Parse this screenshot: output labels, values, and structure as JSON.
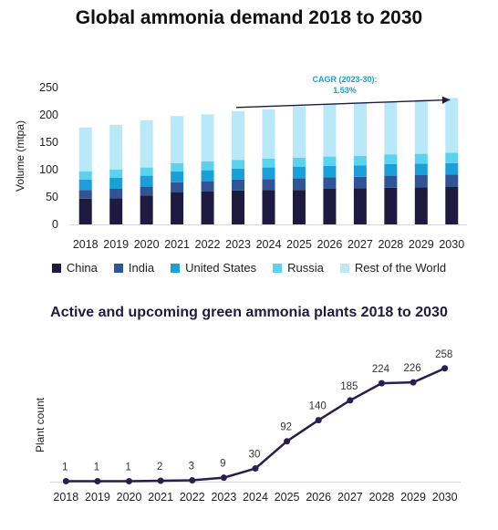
{
  "chart_data": [
    {
      "type": "bar",
      "stacked": true,
      "title": "Global ammonia demand  2018 to 2030",
      "ylabel": "Volume (mtpa)",
      "ylim": [
        0,
        250
      ],
      "yticks": [
        "0",
        "50",
        "100",
        "150",
        "200",
        "250"
      ],
      "categories": [
        "2018",
        "2019",
        "2020",
        "2021",
        "2022",
        "2023",
        "2024",
        "2025",
        "2026",
        "2027",
        "2028",
        "2029",
        "2030"
      ],
      "series": [
        {
          "name": "China",
          "color": "#1f1a3f",
          "values": [
            47,
            48,
            53,
            59,
            60,
            62,
            63,
            63,
            65,
            66,
            67,
            68,
            69
          ]
        },
        {
          "name": "India",
          "color": "#2f5597",
          "values": [
            16,
            17,
            16,
            18,
            19,
            20,
            20,
            21,
            21,
            21,
            22,
            22,
            22
          ]
        },
        {
          "name": "United States",
          "color": "#1aa0d8",
          "values": [
            19,
            20,
            20,
            20,
            20,
            20,
            21,
            21,
            21,
            21,
            21,
            21,
            21
          ]
        },
        {
          "name": "Russia",
          "color": "#5bd3ee",
          "values": [
            15,
            15,
            15,
            15,
            16,
            16,
            16,
            17,
            17,
            17,
            18,
            18,
            19
          ]
        },
        {
          "name": "Rest of the World",
          "color": "#b9e8f9",
          "values": [
            80,
            82,
            86,
            86,
            86,
            89,
            90,
            94,
            96,
            97,
            96,
            99,
            100
          ]
        }
      ],
      "annotation": {
        "line1": "CAGR (2023-30):",
        "line2": "1.53%",
        "from": "2023",
        "to": "2030"
      }
    },
    {
      "type": "line",
      "title": "Active and upcoming green ammonia plants  2018 to 2030",
      "ylabel": "Plant count",
      "color": "#2b1d4f",
      "x": [
        "2018",
        "2019",
        "2020",
        "2021",
        "2022",
        "2023",
        "2024",
        "2025",
        "2026",
        "2027",
        "2028",
        "2029",
        "2030"
      ],
      "values": [
        1,
        1,
        1,
        2,
        3,
        9,
        30,
        92,
        140,
        185,
        224,
        226,
        258
      ],
      "ylim": [
        0,
        270
      ]
    }
  ]
}
